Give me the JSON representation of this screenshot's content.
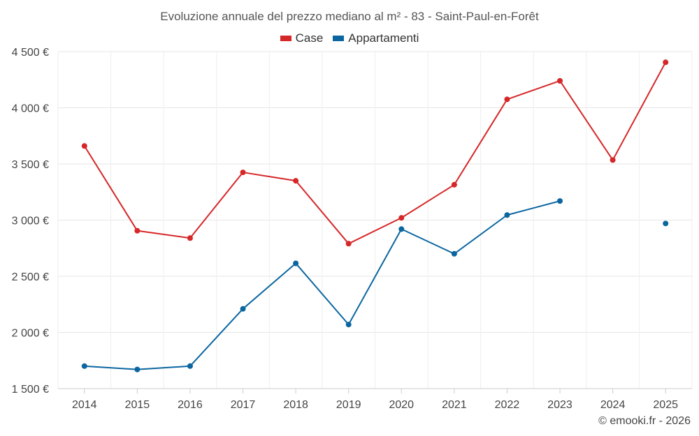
{
  "chart_data": {
    "type": "line",
    "title": "Evoluzione annuale del prezzo mediano al m² - 83 - Saint-Paul-en-Forêt",
    "xlabel": "",
    "ylabel": "",
    "categories": [
      "2014",
      "2015",
      "2016",
      "2017",
      "2018",
      "2019",
      "2020",
      "2021",
      "2022",
      "2023",
      "2024",
      "2025"
    ],
    "ylim": [
      1500,
      4500
    ],
    "yticks": [
      1500,
      2000,
      2500,
      3000,
      3500,
      4000,
      4500
    ],
    "ytick_labels": [
      "1 500 €",
      "2 000 €",
      "2 500 €",
      "3 000 €",
      "3 500 €",
      "4 000 €",
      "4 500 €"
    ],
    "grid": true,
    "legend_position": "top-center",
    "series": [
      {
        "name": "Case",
        "color": "#d62728",
        "values": [
          3660,
          2905,
          2840,
          3425,
          3350,
          2790,
          3020,
          3315,
          4075,
          4240,
          3535,
          4405
        ]
      },
      {
        "name": "Appartamenti",
        "color": "#0b66a0",
        "values": [
          1700,
          1670,
          1700,
          2210,
          2615,
          2070,
          2920,
          2700,
          3045,
          3170,
          null,
          2970
        ]
      }
    ]
  },
  "credit": "© emooki.fr - 2026"
}
